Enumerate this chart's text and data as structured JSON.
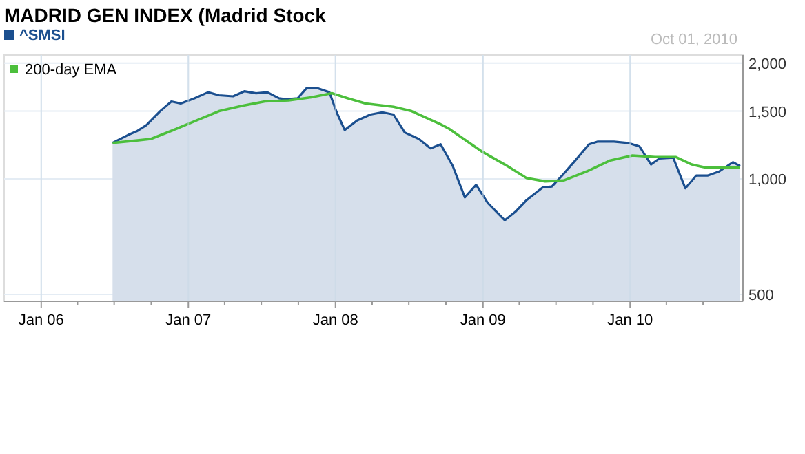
{
  "chart_data": {
    "type": "area",
    "title": "MADRID GEN INDEX (Madrid Stock",
    "annotations": [
      "Oct 01, 2010"
    ],
    "log": true,
    "grid": true,
    "legend": "top left",
    "marker": "none",
    "line_style": "solid",
    "xlim": [
      "2005-10-01",
      "2010-10-08"
    ],
    "ylim": [
      480,
      2100
    ],
    "xticks": [
      {
        "value": "2006-01-01",
        "label": "Jan 06"
      },
      {
        "value": "2006-04-01",
        "label": null
      },
      {
        "value": "2006-07-01",
        "label": null
      },
      {
        "value": "2006-10-01",
        "label": null
      },
      {
        "value": "2007-01-01",
        "label": "Jan 07"
      },
      {
        "value": "2007-04-01",
        "label": null
      },
      {
        "value": "2007-07-01",
        "label": null
      },
      {
        "value": "2007-10-01",
        "label": null
      },
      {
        "value": "2008-01-01",
        "label": "Jan 08"
      },
      {
        "value": "2008-04-01",
        "label": null
      },
      {
        "value": "2008-07-01",
        "label": null
      },
      {
        "value": "2008-10-01",
        "label": null
      },
      {
        "value": "2009-01-01",
        "label": "Jan 09"
      },
      {
        "value": "2009-04-01",
        "label": null
      },
      {
        "value": "2009-07-01",
        "label": null
      },
      {
        "value": "2009-10-01",
        "label": null
      },
      {
        "value": "2010-01-01",
        "label": "Jan 10"
      },
      {
        "value": "2010-04-01",
        "label": null
      },
      {
        "value": "2010-07-01",
        "label": null
      }
    ],
    "yticks": [
      500,
      {
        "value": 1000,
        "label": "1,000"
      },
      {
        "value": 1500,
        "label": "1,500"
      },
      {
        "value": 2000,
        "label": "2,000"
      }
    ],
    "series": [
      {
        "name": "^SMSI",
        "color": "#1b4f8f",
        "x": [
          "2006-06-27",
          "2006-08-04",
          "2006-08-26",
          "2006-09-19",
          "2006-10-23",
          "2006-11-20",
          "2006-12-13",
          "2007-01-16",
          "2007-02-19",
          "2007-03-18",
          "2007-04-22",
          "2007-05-20",
          "2007-06-18",
          "2007-07-16",
          "2007-08-14",
          "2007-09-01",
          "2007-09-29",
          "2007-10-21",
          "2007-11-19",
          "2007-12-17",
          "2008-01-04",
          "2008-01-24",
          "2008-02-24",
          "2008-03-28",
          "2008-04-26",
          "2008-05-24",
          "2008-06-21",
          "2008-07-26",
          "2008-08-24",
          "2008-09-18",
          "2008-10-18",
          "2008-11-17",
          "2008-12-15",
          "2009-01-13",
          "2009-02-24",
          "2009-03-22",
          "2009-04-19",
          "2009-05-29",
          "2009-06-21",
          "2009-07-20",
          "2009-08-16",
          "2009-09-21",
          "2009-10-13",
          "2009-11-22",
          "2009-12-27",
          "2010-01-24",
          "2010-02-22",
          "2010-03-15",
          "2010-04-18",
          "2010-05-18",
          "2010-06-14",
          "2010-07-12",
          "2010-08-10",
          "2010-09-13",
          "2010-10-01"
        ],
        "values": [
          1240,
          1300,
          1330,
          1380,
          1500,
          1590,
          1570,
          1620,
          1680,
          1650,
          1640,
          1690,
          1670,
          1680,
          1620,
          1610,
          1620,
          1720,
          1720,
          1680,
          1490,
          1340,
          1420,
          1470,
          1490,
          1470,
          1320,
          1270,
          1200,
          1230,
          1080,
          895,
          965,
          865,
          780,
          820,
          880,
          950,
          955,
          1030,
          1110,
          1230,
          1250,
          1250,
          1240,
          1215,
          1090,
          1130,
          1135,
          945,
          1020,
          1020,
          1045,
          1105,
          1080
        ]
      },
      {
        "name": "200-day EMA",
        "type": "line",
        "color": "#4cbf3c",
        "x": [
          "2006-06-27",
          "2006-08-15",
          "2006-09-30",
          "2006-11-25",
          "2007-01-22",
          "2007-03-18",
          "2007-05-15",
          "2007-07-10",
          "2007-09-07",
          "2007-11-02",
          "2007-12-23",
          "2008-02-01",
          "2008-03-16",
          "2008-05-24",
          "2008-07-08",
          "2008-09-16",
          "2008-10-09",
          "2008-12-28",
          "2009-02-24",
          "2009-04-19",
          "2009-06-04",
          "2009-07-20",
          "2009-09-15",
          "2009-11-11",
          "2010-01-07",
          "2010-03-04",
          "2010-04-24",
          "2010-06-03",
          "2010-07-07",
          "2010-10-01"
        ],
        "values": [
          1240,
          1255,
          1270,
          1340,
          1420,
          1500,
          1550,
          1590,
          1600,
          1630,
          1670,
          1620,
          1570,
          1540,
          1500,
          1390,
          1350,
          1180,
          1090,
          1005,
          985,
          990,
          1045,
          1115,
          1150,
          1140,
          1140,
          1090,
          1070,
          1070
        ]
      }
    ]
  }
}
